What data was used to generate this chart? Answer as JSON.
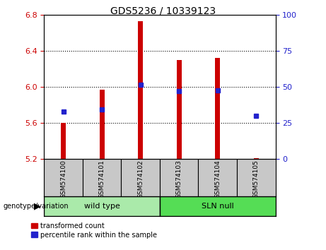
{
  "title": "GDS5236 / 10339123",
  "samples": [
    "GSM574100",
    "GSM574101",
    "GSM574102",
    "GSM574103",
    "GSM574104",
    "GSM574105"
  ],
  "bar_bottom": 5.2,
  "bar_tops": [
    5.6,
    5.97,
    6.73,
    6.3,
    6.32,
    5.21
  ],
  "blue_y": [
    5.725,
    5.745,
    6.02,
    5.955,
    5.96,
    5.675
  ],
  "ylim": [
    5.2,
    6.8
  ],
  "yticks_left": [
    5.2,
    5.6,
    6.0,
    6.4,
    6.8
  ],
  "yticks_right": [
    0,
    25,
    50,
    75,
    100
  ],
  "bar_color": "#cc0000",
  "blue_color": "#2222cc",
  "groups": [
    {
      "label": "wild type",
      "indices": [
        0,
        1,
        2
      ],
      "color": "#aaeaaa"
    },
    {
      "label": "SLN null",
      "indices": [
        3,
        4,
        5
      ],
      "color": "#55dd55"
    }
  ],
  "genotype_label": "genotype/variation",
  "legend_red": "transformed count",
  "legend_blue": "percentile rank within the sample",
  "tick_color_left": "#cc0000",
  "tick_color_right": "#2222cc",
  "sample_bg": "#c8c8c8",
  "plot_bg": "#ffffff"
}
